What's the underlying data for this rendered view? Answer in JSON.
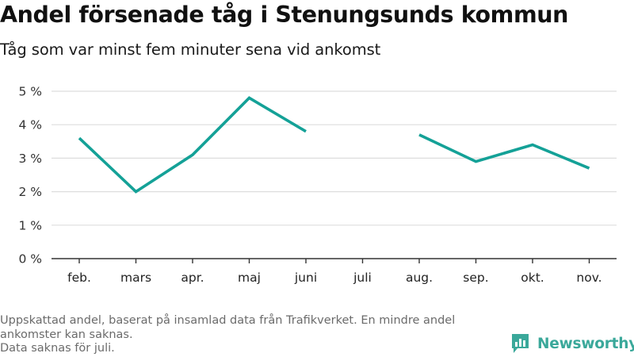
{
  "title": "Andel försenade tåg i Stenungsunds kommun",
  "subtitle": "Tåg som var minst fem minuter sena vid ankomst",
  "footnote": {
    "line1": "Uppskattad andel, baserat på insamlad data från Trafikverket. En mindre andel",
    "line2": "ankomster kan saknas.",
    "line3": "Data saknas för juli."
  },
  "logo": {
    "text": "Newsworthy",
    "icon": "newsworthy-chart-icon"
  },
  "colors": {
    "line": "#14a197",
    "grid": "#dddddd",
    "axis": "#333333",
    "footnote": "#6b6b6b",
    "logo": "#3aa89a"
  },
  "chart_data": {
    "type": "line",
    "categories": [
      "feb.",
      "mars",
      "apr.",
      "maj",
      "juni",
      "juli",
      "aug.",
      "sep.",
      "okt.",
      "nov."
    ],
    "series": [
      {
        "values": [
          3.6,
          2.0,
          3.1,
          4.8,
          3.8,
          null,
          3.7,
          2.9,
          3.4,
          2.7
        ]
      }
    ],
    "yticks": [
      0,
      1,
      2,
      3,
      4,
      5
    ],
    "ytick_labels": [
      "0 %",
      "1 %",
      "2 %",
      "3 %",
      "4 %",
      "5 %"
    ],
    "ylim": [
      0,
      5
    ],
    "grid": true
  }
}
